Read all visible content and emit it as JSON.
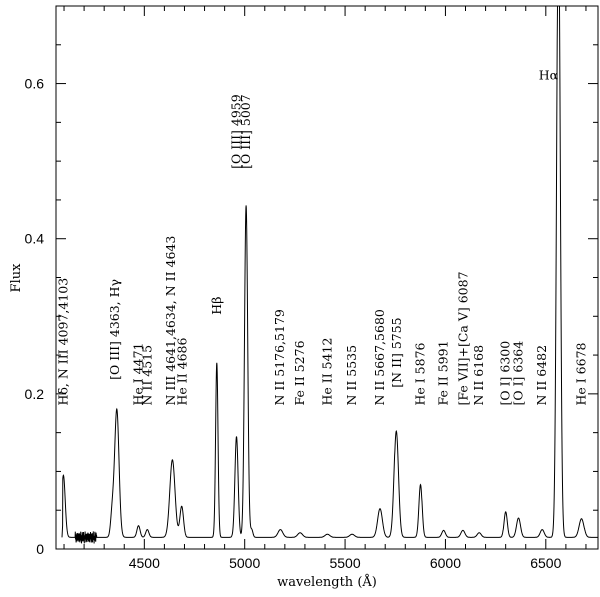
{
  "chart_data": {
    "type": "line",
    "xlabel": "wavelength (Å)",
    "ylabel": "Flux",
    "xlim": [
      4060,
      6760
    ],
    "ylim": [
      0,
      0.7
    ],
    "x_ticks": [
      4500,
      5000,
      5500,
      6000,
      6500
    ],
    "y_ticks": [
      0,
      0.2,
      0.4,
      0.6
    ],
    "y_tick_labels": [
      "0",
      "0.2",
      "0.4",
      "0.6"
    ],
    "grid": false,
    "series": [
      {
        "continuum": 0.015,
        "peaks": [
          {
            "x": 4097,
            "height": 0.08,
            "width": 9
          },
          {
            "x": 4340,
            "height": 0.03,
            "width": 8
          },
          {
            "x": 4363,
            "height": 0.165,
            "width": 11
          },
          {
            "x": 4471,
            "height": 0.015,
            "width": 8
          },
          {
            "x": 4515,
            "height": 0.01,
            "width": 8
          },
          {
            "x": 4640,
            "height": 0.1,
            "width": 13
          },
          {
            "x": 4686,
            "height": 0.04,
            "width": 9
          },
          {
            "x": 4861,
            "height": 0.225,
            "width": 6
          },
          {
            "x": 4959,
            "height": 0.13,
            "width": 8
          },
          {
            "x": 5007,
            "height": 0.428,
            "width": 8
          },
          {
            "x": 5035,
            "height": 0.01,
            "width": 6
          },
          {
            "x": 5178,
            "height": 0.01,
            "width": 12
          },
          {
            "x": 5276,
            "height": 0.006,
            "width": 12
          },
          {
            "x": 5412,
            "height": 0.004,
            "width": 12
          },
          {
            "x": 5535,
            "height": 0.004,
            "width": 12
          },
          {
            "x": 5674,
            "height": 0.037,
            "width": 12
          },
          {
            "x": 5755,
            "height": 0.137,
            "width": 11
          },
          {
            "x": 5876,
            "height": 0.068,
            "width": 8
          },
          {
            "x": 5991,
            "height": 0.009,
            "width": 9
          },
          {
            "x": 6087,
            "height": 0.009,
            "width": 10
          },
          {
            "x": 6168,
            "height": 0.006,
            "width": 10
          },
          {
            "x": 6300,
            "height": 0.033,
            "width": 8
          },
          {
            "x": 6364,
            "height": 0.025,
            "width": 10
          },
          {
            "x": 6482,
            "height": 0.01,
            "width": 10
          },
          {
            "x": 6563,
            "height": 0.8,
            "width": 9
          },
          {
            "x": 6678,
            "height": 0.024,
            "width": 12
          }
        ],
        "segments": [
          4090,
          4155,
          4170,
          4255,
          4263
        ]
      }
    ],
    "line_labels": [
      {
        "id": "hdelta",
        "text": "Hδ, N III 4097,4103",
        "x": 4097,
        "y": 0.185
      },
      {
        "id": "oiii4363",
        "text": "[O III] 4363, Hγ",
        "x": 4355,
        "y": 0.218
      },
      {
        "id": "hei4471",
        "text": "He I 4471",
        "x": 4470,
        "y": 0.185
      },
      {
        "id": "nii4515",
        "text": "N II 4515",
        "x": 4515,
        "y": 0.185
      },
      {
        "id": "niii4641",
        "text": "N III 4641,4634, N II 4643",
        "x": 4633,
        "y": 0.185
      },
      {
        "id": "heii4686",
        "text": "He II 4686",
        "x": 4691,
        "y": 0.185
      },
      {
        "id": "hbeta",
        "text": "Hβ",
        "x": 4861,
        "y": 0.302
      },
      {
        "id": "oiii4959",
        "text": "[O III] 4959",
        "x": 4959,
        "y": 0.49
      },
      {
        "id": "oiii5007",
        "text": "[O III] 5007",
        "x": 5007,
        "y": 0.49
      },
      {
        "id": "nii5176",
        "text": "N II 5176,5179",
        "x": 5176,
        "y": 0.185
      },
      {
        "id": "feii5276",
        "text": "Fe II 5276",
        "x": 5276,
        "y": 0.185
      },
      {
        "id": "heii5412",
        "text": "He II 5412",
        "x": 5412,
        "y": 0.185
      },
      {
        "id": "nii5535",
        "text": "N II 5535",
        "x": 5535,
        "y": 0.185
      },
      {
        "id": "nii5667",
        "text": "N II 5667,5680",
        "x": 5674,
        "y": 0.185
      },
      {
        "id": "nii5755",
        "text": "[N II] 5755",
        "x": 5759,
        "y": 0.208
      },
      {
        "id": "hei5876",
        "text": "He I 5876",
        "x": 5876,
        "y": 0.185
      },
      {
        "id": "feii5991",
        "text": "Fe II 5991",
        "x": 5991,
        "y": 0.185
      },
      {
        "id": "fevii6087",
        "text": "[Fe VII]+[Ca V] 6087",
        "x": 6090,
        "y": 0.185
      },
      {
        "id": "nii6168",
        "text": "N II 6168",
        "x": 6168,
        "y": 0.185
      },
      {
        "id": "oi6300",
        "text": "[O I] 6300",
        "x": 6300,
        "y": 0.185
      },
      {
        "id": "oi6364",
        "text": "[O I] 6364",
        "x": 6364,
        "y": 0.185
      },
      {
        "id": "nii6482",
        "text": "N II 6482",
        "x": 6482,
        "y": 0.185
      },
      {
        "id": "halpha",
        "text": "Hα",
        "x": 6563,
        "y": 0.605,
        "horizontal": true
      },
      {
        "id": "hei6678",
        "text": "He I 6678",
        "x": 6678,
        "y": 0.185
      }
    ]
  }
}
